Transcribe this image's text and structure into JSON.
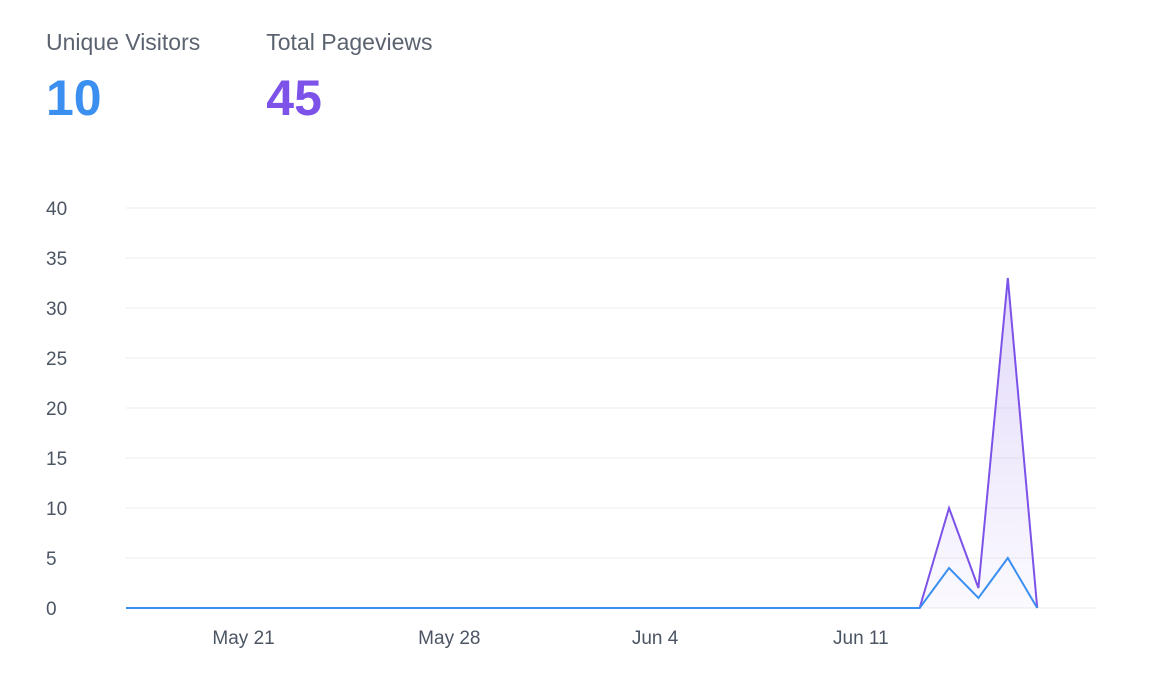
{
  "summary": {
    "unique_visitors_label": "Unique Visitors",
    "unique_visitors_value": "10",
    "total_pageviews_label": "Total Pageviews",
    "total_pageviews_value": "45"
  },
  "colors": {
    "visitors": "#3b8ff0",
    "pageviews": "#7c52e8",
    "grid": "#eeeeee"
  },
  "chart_data": {
    "type": "area",
    "title": "",
    "xlabel": "",
    "ylabel": "",
    "x_start": "May 17",
    "x_end": "Jun 19",
    "x_ticks": [
      {
        "date": "May 21",
        "label": "May 21"
      },
      {
        "date": "May 28",
        "label": "May 28"
      },
      {
        "date": "Jun 4",
        "label": "Jun 4"
      },
      {
        "date": "Jun 11",
        "label": "Jun 11"
      }
    ],
    "ylim": [
      0,
      40
    ],
    "y_ticks": [
      0,
      5,
      10,
      15,
      20,
      25,
      30,
      35,
      40
    ],
    "grid": true,
    "series": [
      {
        "name": "Total Pageviews",
        "color": "#7c52e8",
        "filled": true,
        "points": [
          {
            "date": "May 17",
            "value": 0
          },
          {
            "date": "Jun 13",
            "value": 0
          },
          {
            "date": "Jun 14",
            "value": 10
          },
          {
            "date": "Jun 15",
            "value": 2
          },
          {
            "date": "Jun 16",
            "value": 33
          },
          {
            "date": "Jun 17",
            "value": 0
          }
        ]
      },
      {
        "name": "Unique Visitors",
        "color": "#3b8ff0",
        "filled": false,
        "points": [
          {
            "date": "May 17",
            "value": 0
          },
          {
            "date": "Jun 13",
            "value": 0
          },
          {
            "date": "Jun 14",
            "value": 4
          },
          {
            "date": "Jun 15",
            "value": 1
          },
          {
            "date": "Jun 16",
            "value": 5
          },
          {
            "date": "Jun 17",
            "value": 0
          }
        ]
      }
    ]
  }
}
